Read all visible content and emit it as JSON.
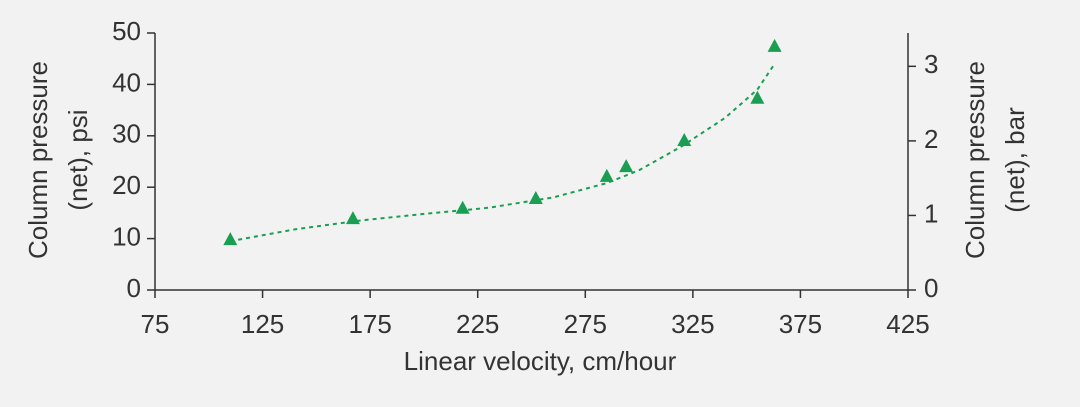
{
  "chart_data": {
    "type": "scatter",
    "xlabel": "Linear velocity, cm/hour",
    "ylabel": [
      "Column pressure",
      "(net), psi"
    ],
    "y2label": [
      "Column pressure",
      "(net), bar"
    ],
    "xlim": [
      75,
      425
    ],
    "xticks": [
      75,
      125,
      175,
      225,
      275,
      325,
      375,
      425
    ],
    "ylim": [
      0,
      50
    ],
    "yticks": [
      0,
      10,
      20,
      30,
      40,
      50
    ],
    "y2lim": [
      0,
      3.447
    ],
    "y2ticks": [
      0,
      1,
      2,
      3
    ],
    "grid": false,
    "series": [
      {
        "color": "#1a9e52",
        "marker": "triangle",
        "x": [
          110,
          167,
          218,
          252,
          285,
          294,
          321,
          355,
          363
        ],
        "values": [
          9.7,
          13.8,
          15.8,
          17.7,
          22.0,
          23.9,
          29.0,
          37.2,
          47.3
        ]
      },
      {
        "color": "#1a9e52",
        "dashed": true,
        "x": [
          110,
          140,
          170,
          200,
          230,
          260,
          285,
          300,
          320,
          340,
          355,
          363
        ],
        "values": [
          9.5,
          11.8,
          13.5,
          14.8,
          16.0,
          18.0,
          20.8,
          23.3,
          28.0,
          33.5,
          39.0,
          44.0
        ]
      }
    ]
  }
}
